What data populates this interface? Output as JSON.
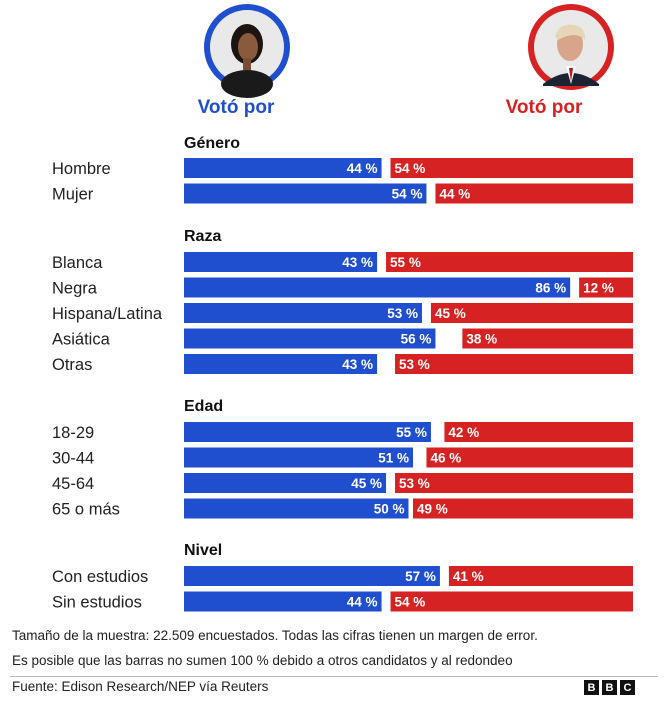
{
  "header": {
    "left": {
      "label": "Votó por",
      "color": "#1f4fcf",
      "avatar": "harris-portrait"
    },
    "right": {
      "label": "Votó por",
      "color": "#d62222",
      "avatar": "trump-portrait"
    }
  },
  "chart_data": {
    "type": "bar",
    "orientation": "horizontal-diverging",
    "series": [
      {
        "name": "Votó por (izquierda)",
        "color": "#1f4fcf"
      },
      {
        "name": "Votó por (derecha)",
        "color": "#d62222"
      }
    ],
    "groups": [
      {
        "title": "Género",
        "rows": [
          {
            "label": "Hombre",
            "left": 44,
            "right": 54,
            "left_text": "44 %",
            "right_text": "54 %"
          },
          {
            "label": "Mujer",
            "left": 54,
            "right": 44,
            "left_text": "54 %",
            "right_text": "44 %"
          }
        ]
      },
      {
        "title": "Raza",
        "rows": [
          {
            "label": "Blanca",
            "left": 43,
            "right": 55,
            "left_text": "43 %",
            "right_text": "55 %"
          },
          {
            "label": "Negra",
            "left": 86,
            "right": 12,
            "left_text": "86 %",
            "right_text": "12 %"
          },
          {
            "label": "Hispana/Latina",
            "left": 53,
            "right": 45,
            "left_text": "53 %",
            "right_text": "45 %"
          },
          {
            "label": "Asiática",
            "left": 56,
            "right": 38,
            "left_text": "56 %",
            "right_text": "38 %"
          },
          {
            "label": "Otras",
            "left": 43,
            "right": 53,
            "left_text": "43 %",
            "right_text": "53 %"
          }
        ]
      },
      {
        "title": "Edad",
        "rows": [
          {
            "label": "18-29",
            "left": 55,
            "right": 42,
            "left_text": "55 %",
            "right_text": "42 %"
          },
          {
            "label": "30-44",
            "left": 51,
            "right": 46,
            "left_text": "51 %",
            "right_text": "46 %"
          },
          {
            "label": "45-64",
            "left": 45,
            "right": 53,
            "left_text": "45 %",
            "right_text": "53 %"
          },
          {
            "label": "65 o más",
            "left": 50,
            "right": 49,
            "left_text": "50 %",
            "right_text": "49 %"
          }
        ]
      },
      {
        "title": "Nivel",
        "rows": [
          {
            "label": "Con estudios",
            "left": 57,
            "right": 41,
            "left_text": "57 %",
            "right_text": "41 %"
          },
          {
            "label": "Sin estudios",
            "left": 44,
            "right": 54,
            "left_text": "44 %",
            "right_text": "54 %"
          }
        ]
      }
    ]
  },
  "footer": {
    "note1": "Tamaño de la muestra: 22.509 encuestados. Todas las cifras tienen un margen de error.",
    "note2": "Es posible que las barras no sumen 100 % debido a otros candidatos y al redondeo",
    "source": "Fuente: Edison Research/NEP vía Reuters",
    "logo_letters": [
      "B",
      "B",
      "C"
    ]
  }
}
